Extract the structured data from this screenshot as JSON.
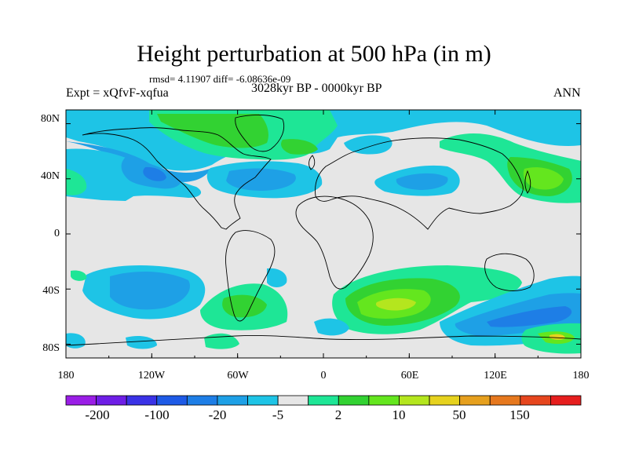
{
  "title": "Height perturbation at 500 hPa (in m)",
  "stats_line": "rmsd= 4.11907 diff= -6.08636e-09",
  "experiment": "Expt = xQfvF-xqfua",
  "period": "3028kyr BP - 0000kyr BP",
  "season": "ANN",
  "map": {
    "lon_ticks": [
      "180",
      "120W",
      "60W",
      "0",
      "60E",
      "120E",
      "180"
    ],
    "lat_ticks": [
      "80N",
      "40N",
      "0",
      "40S",
      "80S"
    ]
  },
  "colorbar": {
    "colors": [
      "#9a1ee6",
      "#6e1ee6",
      "#3a32e6",
      "#1e5ae6",
      "#1e7ee6",
      "#1ea0e6",
      "#1ec4e6",
      "#e6e6e6",
      "#1ee696",
      "#32d232",
      "#64e61e",
      "#b4e61e",
      "#e6d21e",
      "#e6a01e",
      "#e6781e",
      "#e6461e",
      "#e61e1e"
    ],
    "labels": [
      "-200",
      "-100",
      "-20",
      "-5",
      "2",
      "10",
      "50",
      "150"
    ]
  }
}
